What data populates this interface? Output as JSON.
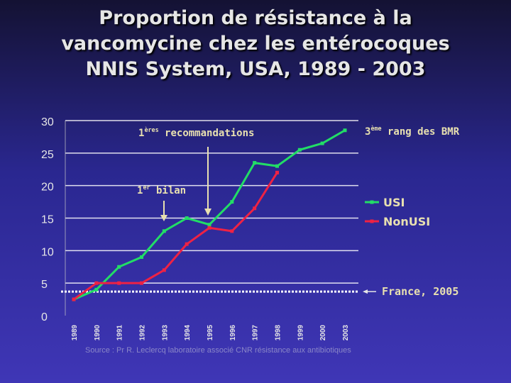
{
  "title_lines": [
    "Proportion de résistance à la",
    "vancomycine chez les entérocoques",
    "NNIS System, USA, 1989 - 2003"
  ],
  "source": "Source : Pr R. Leclercq laboratoire associé CNR résistance aux antibiotiques",
  "colors": {
    "usi": "#22dd66",
    "nonusi": "#ee2244",
    "text": "#e6e6e6",
    "annotation": "#e8e0b0",
    "grid": "#ffffff"
  },
  "annotations": {
    "recommandations": {
      "sup": "ères",
      "text": "recommandations",
      "prefix": "1"
    },
    "bilan": {
      "sup": "er",
      "text": "bilan",
      "prefix": "1"
    },
    "rang": {
      "sup": "ème",
      "text": "rang des BMR",
      "prefix": "3"
    },
    "france": {
      "text": "France, 2005",
      "value": 3.7
    }
  },
  "chart_data": {
    "type": "line",
    "categories": [
      "1989",
      "1990",
      "1991",
      "1992",
      "1993",
      "1994",
      "1995",
      "1996",
      "1997",
      "1998",
      "1999",
      "2000",
      "2003"
    ],
    "series": [
      {
        "name": "USI",
        "values": [
          2.5,
          4.0,
          7.5,
          9.0,
          13.0,
          15.0,
          14.0,
          17.5,
          23.5,
          23.0,
          25.5,
          26.5,
          28.5
        ]
      },
      {
        "name": "NonUSI",
        "values": [
          2.5,
          5.0,
          5.0,
          5.0,
          7.0,
          11.0,
          13.5,
          13.0,
          16.5,
          22.0,
          null,
          null,
          null
        ]
      }
    ],
    "ylim": [
      0,
      30
    ],
    "yticks": [
      0,
      5,
      10,
      15,
      20,
      25,
      30
    ],
    "grid": true,
    "legend": "right",
    "reference_line": {
      "label": "France, 2005",
      "value": 3.7
    }
  }
}
